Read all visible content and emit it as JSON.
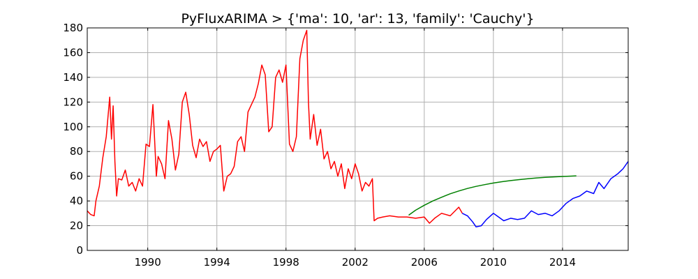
{
  "chart_data": {
    "type": "line",
    "title": "PyFluxARIMA > {'ma': 10, 'ar': 13, 'family': 'Cauchy'}",
    "xlabel": "",
    "ylabel": "",
    "xlim": [
      1986.5,
      2017.8
    ],
    "ylim": [
      0,
      180
    ],
    "grid": true,
    "x_ticks": [
      1990,
      1994,
      1998,
      2002,
      2006,
      2010,
      2014
    ],
    "x_tick_labels": [
      "1990",
      "1994",
      "1998",
      "2002",
      "2006",
      "2010",
      "2014"
    ],
    "y_ticks": [
      0,
      20,
      40,
      60,
      80,
      100,
      120,
      140,
      160,
      180
    ],
    "y_tick_labels": [
      "0",
      "20",
      "40",
      "60",
      "80",
      "100",
      "120",
      "140",
      "160",
      "180"
    ],
    "series": [
      {
        "color": "#ff0000",
        "x": [
          1986.5,
          1986.7,
          1986.9,
          1987.0,
          1987.2,
          1987.4,
          1987.6,
          1987.8,
          1987.9,
          1988.0,
          1988.1,
          1988.2,
          1988.3,
          1988.5,
          1988.7,
          1988.9,
          1989.1,
          1989.3,
          1989.5,
          1989.7,
          1989.9,
          1990.1,
          1990.3,
          1990.5,
          1990.6,
          1990.8,
          1991.0,
          1991.2,
          1991.4,
          1991.6,
          1991.8,
          1992.0,
          1992.2,
          1992.4,
          1992.6,
          1992.8,
          1993.0,
          1993.2,
          1993.4,
          1993.6,
          1993.8,
          1994.0,
          1994.2,
          1994.4,
          1994.6,
          1994.8,
          1995.0,
          1995.2,
          1995.4,
          1995.6,
          1995.8,
          1996.0,
          1996.2,
          1996.4,
          1996.6,
          1996.8,
          1997.0,
          1997.2,
          1997.4,
          1997.6,
          1997.8,
          1998.0,
          1998.2,
          1998.4,
          1998.6,
          1998.8,
          1999.0,
          1999.2,
          1999.3,
          1999.4,
          1999.6,
          1999.8,
          2000.0,
          2000.2,
          2000.4,
          2000.6,
          2000.8,
          2001.0,
          2001.2,
          2001.4,
          2001.6,
          2001.8,
          2002.0,
          2002.2,
          2002.4,
          2002.6,
          2002.8,
          2003.0,
          2003.1,
          2003.3,
          2003.6,
          2004.0,
          2004.5,
          2005.0,
          2005.5,
          2006.0,
          2006.3,
          2006.6,
          2007.0,
          2007.5,
          2008.0,
          2008.2
        ],
        "values": [
          32,
          29,
          28,
          40,
          52,
          75,
          92,
          124,
          90,
          117,
          72,
          44,
          58,
          57,
          65,
          52,
          55,
          48,
          58,
          52,
          86,
          84,
          118,
          60,
          76,
          70,
          58,
          105,
          90,
          65,
          78,
          120,
          128,
          110,
          85,
          75,
          90,
          84,
          88,
          72,
          80,
          82,
          85,
          48,
          60,
          62,
          68,
          88,
          92,
          80,
          112,
          118,
          124,
          135,
          150,
          142,
          96,
          100,
          140,
          146,
          136,
          150,
          86,
          80,
          92,
          155,
          170,
          178,
          120,
          90,
          110,
          85,
          98,
          74,
          80,
          66,
          72,
          60,
          70,
          50,
          66,
          58,
          70,
          62,
          48,
          55,
          52,
          58,
          24,
          26,
          27,
          28,
          27,
          27,
          26,
          27,
          22,
          26,
          30,
          28,
          35,
          30
        ]
      },
      {
        "color": "#0000ff",
        "x": [
          2008.2,
          2008.5,
          2008.8,
          2009.0,
          2009.3,
          2009.6,
          2010.0,
          2010.3,
          2010.6,
          2011.0,
          2011.4,
          2011.8,
          2012.2,
          2012.6,
          2013.0,
          2013.4,
          2013.8,
          2014.2,
          2014.6,
          2015.0,
          2015.4,
          2015.8,
          2016.1,
          2016.4,
          2016.8,
          2017.2,
          2017.5,
          2017.8
        ],
        "values": [
          30,
          28,
          23,
          19,
          20,
          25,
          30,
          27,
          24,
          26,
          25,
          26,
          32,
          29,
          30,
          28,
          32,
          38,
          42,
          44,
          48,
          46,
          55,
          50,
          58,
          62,
          66,
          72
        ]
      },
      {
        "color": "#008000",
        "x": [
          2005.1,
          2005.5,
          2006.0,
          2006.5,
          2007.0,
          2007.5,
          2008.0,
          2008.5,
          2009.0,
          2009.5,
          2010.0,
          2010.5,
          2011.0,
          2011.5,
          2012.0,
          2012.5,
          2013.0,
          2013.5,
          2014.0,
          2014.5,
          2014.8
        ],
        "values": [
          28.5,
          32.5,
          36.5,
          40,
          43,
          45.8,
          48.1,
          50.1,
          51.8,
          53.2,
          54.5,
          55.6,
          56.5,
          57.3,
          58,
          58.6,
          59.1,
          59.5,
          59.8,
          60.1,
          60.3
        ]
      }
    ]
  }
}
